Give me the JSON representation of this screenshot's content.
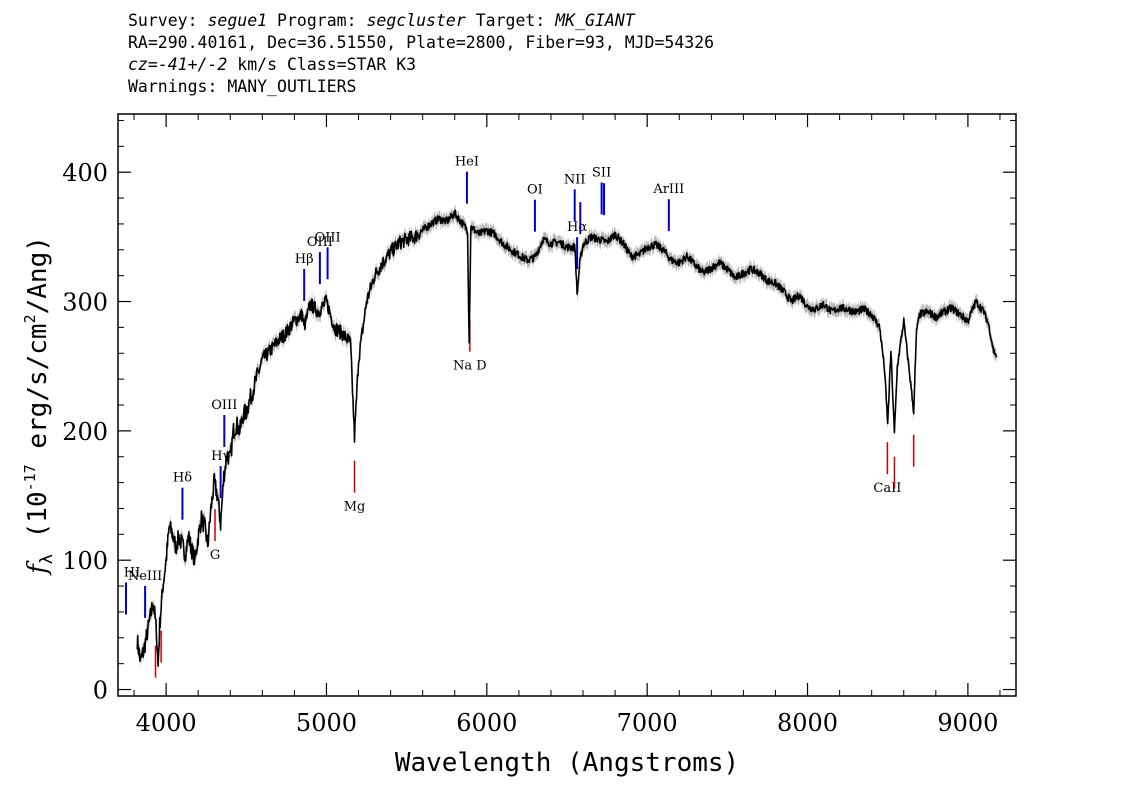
{
  "header": {
    "survey_label": "Survey:",
    "survey": "segue1",
    "program_label": "Program:",
    "program": "segcluster",
    "target_label": "Target:",
    "target": "MK_GIANT",
    "line2": "RA=290.40161, Dec=36.51550, Plate=2800, Fiber=93, MJD=54326",
    "cz_prefix": "cz=",
    "cz_value": "-41+/-2",
    "cz_suffix": " km/s Class=STAR K3",
    "warnings": "Warnings: MANY_OUTLIERS"
  },
  "chart_data": {
    "type": "line",
    "title": "",
    "xlabel": "Wavelength (Angstroms)",
    "ylabel": "f_λ (10^-17 erg/s/cm^2/Ang)",
    "xlim": [
      3700,
      9300
    ],
    "ylim": [
      -5,
      445
    ],
    "x_ticks": [
      4000,
      5000,
      6000,
      7000,
      8000,
      9000
    ],
    "y_ticks": [
      0,
      100,
      200,
      300,
      400
    ],
    "grid": false,
    "colors": {
      "spectrum": "#000000",
      "error_band": "#b8b8b8",
      "emission": "#0000cc",
      "absorption": "#cc0000"
    },
    "series": [
      {
        "name": "spectrum",
        "x": [
          3820,
          3840,
          3860,
          3880,
          3900,
          3920,
          3940,
          3950,
          3960,
          3980,
          4000,
          4020,
          4040,
          4060,
          4080,
          4100,
          4120,
          4140,
          4160,
          4180,
          4200,
          4220,
          4240,
          4260,
          4280,
          4300,
          4320,
          4340,
          4360,
          4380,
          4400,
          4420,
          4440,
          4460,
          4480,
          4500,
          4550,
          4600,
          4650,
          4700,
          4750,
          4800,
          4850,
          4860,
          4900,
          4950,
          5000,
          5050,
          5100,
          5150,
          5175,
          5200,
          5250,
          5300,
          5350,
          5400,
          5450,
          5500,
          5550,
          5600,
          5650,
          5700,
          5750,
          5800,
          5850,
          5880,
          5890,
          5900,
          5950,
          6000,
          6050,
          6100,
          6150,
          6200,
          6250,
          6300,
          6350,
          6400,
          6450,
          6500,
          6550,
          6563,
          6580,
          6600,
          6650,
          6700,
          6750,
          6800,
          6850,
          6900,
          6950,
          7000,
          7050,
          7100,
          7150,
          7200,
          7250,
          7300,
          7350,
          7400,
          7450,
          7500,
          7550,
          7600,
          7650,
          7700,
          7750,
          7800,
          7850,
          7900,
          7950,
          8000,
          8050,
          8100,
          8150,
          8200,
          8250,
          8300,
          8350,
          8400,
          8450,
          8480,
          8500,
          8520,
          8542,
          8560,
          8600,
          8640,
          8662,
          8680,
          8700,
          8750,
          8800,
          8850,
          8900,
          8950,
          9000,
          9050,
          9100,
          9130,
          9160,
          9180
        ],
        "values": [
          38,
          22,
          30,
          42,
          55,
          68,
          45,
          18,
          50,
          80,
          100,
          126,
          120,
          110,
          118,
          112,
          105,
          118,
          108,
          100,
          118,
          132,
          126,
          112,
          140,
          160,
          150,
          128,
          165,
          182,
          178,
          200,
          205,
          200,
          212,
          215,
          235,
          255,
          262,
          270,
          276,
          285,
          290,
          280,
          298,
          292,
          300,
          280,
          275,
          268,
          195,
          255,
          300,
          320,
          330,
          338,
          345,
          348,
          350,
          355,
          360,
          364,
          362,
          368,
          360,
          355,
          268,
          358,
          352,
          355,
          352,
          345,
          340,
          336,
          332,
          334,
          348,
          345,
          346,
          342,
          342,
          305,
          330,
          344,
          350,
          348,
          346,
          352,
          345,
          335,
          336,
          342,
          344,
          340,
          332,
          330,
          335,
          328,
          322,
          326,
          330,
          325,
          318,
          322,
          325,
          322,
          316,
          314,
          308,
          300,
          305,
          296,
          294,
          298,
          292,
          295,
          294,
          292,
          294,
          290,
          280,
          248,
          205,
          262,
          198,
          250,
          285,
          240,
          215,
          278,
          290,
          292,
          288,
          292,
          295,
          290,
          285,
          300,
          292,
          282,
          262,
          258
        ]
      }
    ],
    "emission_lines": [
      {
        "label": "HI",
        "wave": 3750
      },
      {
        "label": "NeIII",
        "wave": 3869
      },
      {
        "label": "Hδ",
        "wave": 4102
      },
      {
        "label": "Hγ",
        "wave": 4340
      },
      {
        "label": "OIII",
        "wave": 4363
      },
      {
        "label": "Hβ",
        "wave": 4861
      },
      {
        "label": "OIII",
        "wave": 4959
      },
      {
        "label": "OIII",
        "wave": 5007
      },
      {
        "label": "HeI",
        "wave": 5876
      },
      {
        "label": "OI",
        "wave": 6300
      },
      {
        "label": "NII",
        "wave": 6548
      },
      {
        "label": "Hα",
        "wave": 6563
      },
      {
        "label": "NII",
        "wave": 6583
      },
      {
        "label": "SII",
        "wave": 6716
      },
      {
        "label": "SII",
        "wave": 6731
      },
      {
        "label": "ArIII",
        "wave": 7135
      }
    ],
    "absorption_lines": [
      {
        "label": "",
        "wave": 3934
      },
      {
        "label": "",
        "wave": 3969
      },
      {
        "label": "G",
        "wave": 4305
      },
      {
        "label": "Mg",
        "wave": 5175
      },
      {
        "label": "Na D",
        "wave": 5894
      },
      {
        "label": "CaII",
        "wave": 8498
      },
      {
        "label": "",
        "wave": 8542
      },
      {
        "label": "",
        "wave": 8662
      }
    ]
  }
}
